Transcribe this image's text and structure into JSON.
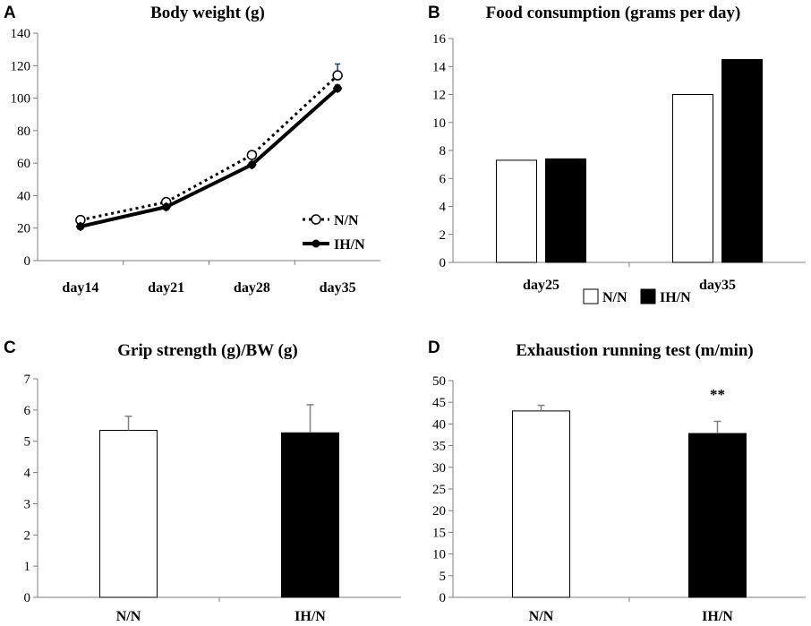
{
  "figure_title": "Body weight, food consumption, grip strength and exhaustion running test",
  "colors": {
    "nn": "#ffffff",
    "ihn": "#000000",
    "axis": "#7f7f7f",
    "error": "#1f3a68"
  },
  "chart_data": [
    {
      "panel": "A",
      "type": "line",
      "title": "Body weight (g)",
      "categories": [
        "day14",
        "day21",
        "day28",
        "day35"
      ],
      "ylim": [
        0,
        140
      ],
      "yticks": [
        0,
        20,
        40,
        60,
        80,
        100,
        120,
        140
      ],
      "series": [
        {
          "name": "N/N",
          "values": [
            25,
            36,
            65,
            114
          ],
          "errors": [
            1.5,
            1.5,
            2,
            7
          ],
          "style": "dotted-open-circle"
        },
        {
          "name": "IH/N",
          "values": [
            21,
            33,
            59,
            106
          ],
          "errors": [
            1,
            1,
            1.5,
            2
          ],
          "style": "solid-filled-marker"
        }
      ],
      "legend": [
        "N/N",
        "IH/N"
      ],
      "legend_position": "bottom-right"
    },
    {
      "panel": "B",
      "type": "bar",
      "title": "Food consumption (grams per day)",
      "categories": [
        "day25",
        "day35"
      ],
      "ylim": [
        0,
        16
      ],
      "yticks": [
        0,
        2,
        4,
        6,
        8,
        10,
        12,
        14,
        16
      ],
      "series": [
        {
          "name": "N/N",
          "values": [
            7.3,
            12.0
          ]
        },
        {
          "name": "IH/N",
          "values": [
            7.4,
            14.5
          ]
        }
      ],
      "legend": [
        "N/N",
        "IH/N"
      ],
      "legend_position": "bottom-center"
    },
    {
      "panel": "C",
      "type": "bar",
      "title": "Grip strength (g)/BW (g)",
      "categories": [
        "N/N",
        "IH/N"
      ],
      "ylim": [
        0,
        7
      ],
      "yticks": [
        0,
        1,
        2,
        3,
        4,
        5,
        6,
        7
      ],
      "values": [
        5.35,
        5.27
      ],
      "errors": [
        0.45,
        0.9
      ]
    },
    {
      "panel": "D",
      "type": "bar",
      "title": "Exhaustion running test (m/min)",
      "categories": [
        "N/N",
        "IH/N"
      ],
      "ylim": [
        0,
        50
      ],
      "yticks": [
        0,
        5,
        10,
        15,
        20,
        25,
        30,
        35,
        40,
        45,
        50
      ],
      "values": [
        43,
        37.8
      ],
      "errors": [
        1.3,
        2.8
      ],
      "annotations": [
        {
          "category": "IH/N",
          "text": "**"
        }
      ]
    }
  ]
}
